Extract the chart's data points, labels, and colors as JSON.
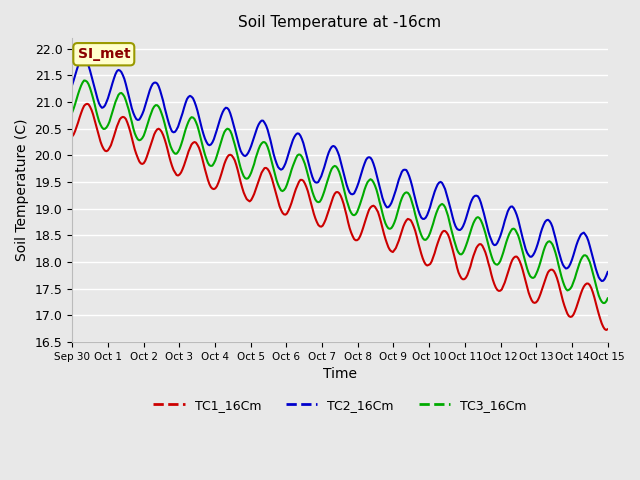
{
  "title": "Soil Temperature at -16cm",
  "xlabel": "Time",
  "ylabel": "Soil Temperature (C)",
  "ylim": [
    16.5,
    22.2
  ],
  "background_color": "#e8e8e8",
  "plot_bg_color": "#e8e8e8",
  "grid_color": "#ffffff",
  "annotation_text": "SI_met",
  "annotation_bg": "#ffffcc",
  "annotation_border": "#999900",
  "annotation_text_color": "#8b0000",
  "xtick_labels": [
    "Sep 30",
    "Oct 1",
    "Oct 2",
    "Oct 3",
    "Oct 4",
    "Oct 5",
    "Oct 6",
    "Oct 7",
    "Oct 8",
    "Oct 9",
    "Oct 10",
    "Oct 11",
    "Oct 12",
    "Oct 13",
    "Oct 14",
    "Oct 15"
  ],
  "xtick_positions": [
    0,
    1,
    2,
    3,
    4,
    5,
    6,
    7,
    8,
    9,
    10,
    11,
    12,
    13,
    14,
    15
  ],
  "ytick_values": [
    16.5,
    17.0,
    17.5,
    18.0,
    18.5,
    19.0,
    19.5,
    20.0,
    20.5,
    21.0,
    21.5,
    22.0
  ],
  "series": {
    "TC1_16Cm": {
      "color": "#cc0000",
      "lw": 1.5
    },
    "TC2_16Cm": {
      "color": "#0000cc",
      "lw": 1.5
    },
    "TC3_16Cm": {
      "color": "#00aa00",
      "lw": 1.5
    }
  }
}
